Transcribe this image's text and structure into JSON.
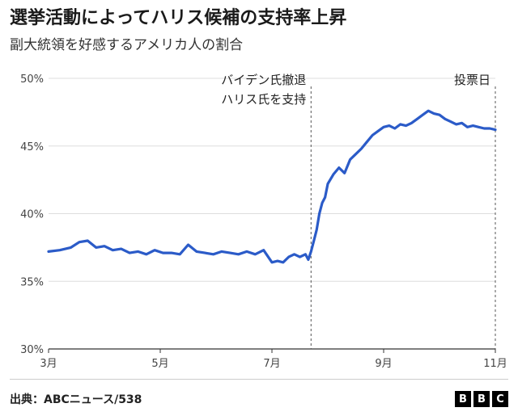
{
  "title": "選挙活動によってハリス候補の支持率上昇",
  "subtitle": "副大統領を好感するアメリカ人の割合",
  "source": "出典：ABCニュース/538",
  "logo": {
    "letters": [
      "B",
      "B",
      "C"
    ]
  },
  "chart_data": {
    "type": "line",
    "y_ticks": [
      "50%",
      "45%",
      "40%",
      "35%",
      "30%"
    ],
    "y_tick_values": [
      50,
      45,
      40,
      35,
      30
    ],
    "ylim": [
      30,
      50
    ],
    "x_ticks": [
      "3月",
      "5月",
      "7月",
      "9月",
      "11月"
    ],
    "x_tick_values": [
      0,
      2,
      4,
      6,
      8
    ],
    "xlim": [
      0,
      8
    ],
    "grid": "horizontal",
    "series_color": "#2b5bc8",
    "annotations": [
      {
        "lines": [
          "バイデン氏撤退",
          "ハリス氏を支持"
        ],
        "x": 4.7
      },
      {
        "lines": [
          "投票日"
        ],
        "x": 8.0
      }
    ],
    "series": [
      {
        "x": [
          0.0,
          0.2,
          0.4,
          0.55,
          0.7,
          0.85,
          1.0,
          1.15,
          1.3,
          1.45,
          1.6,
          1.75,
          1.9,
          2.05,
          2.2,
          2.35,
          2.5,
          2.65,
          2.8,
          2.95,
          3.1,
          3.25,
          3.4,
          3.55,
          3.7,
          3.85,
          4.0,
          4.1,
          4.2,
          4.3,
          4.4,
          4.5,
          4.6,
          4.65,
          4.7,
          4.75,
          4.8,
          4.85,
          4.9,
          4.95,
          5.0,
          5.1,
          5.2,
          5.3,
          5.4,
          5.5,
          5.6,
          5.7,
          5.8,
          5.9,
          6.0,
          6.1,
          6.2,
          6.3,
          6.4,
          6.5,
          6.6,
          6.7,
          6.8,
          6.9,
          7.0,
          7.1,
          7.2,
          7.3,
          7.4,
          7.5,
          7.6,
          7.7,
          7.8,
          7.9,
          8.0
        ],
        "values": [
          37.2,
          37.3,
          37.5,
          37.9,
          38.0,
          37.5,
          37.6,
          37.3,
          37.4,
          37.1,
          37.2,
          37.0,
          37.3,
          37.1,
          37.1,
          37.0,
          37.7,
          37.2,
          37.1,
          37.0,
          37.2,
          37.1,
          37.0,
          37.2,
          37.0,
          37.3,
          36.4,
          36.5,
          36.4,
          36.8,
          37.0,
          36.8,
          37.0,
          36.6,
          37.2,
          38.0,
          38.8,
          40.0,
          40.8,
          41.2,
          42.2,
          42.9,
          43.4,
          43.0,
          44.0,
          44.4,
          44.8,
          45.3,
          45.8,
          46.1,
          46.4,
          46.5,
          46.3,
          46.6,
          46.5,
          46.7,
          47.0,
          47.3,
          47.6,
          47.4,
          47.3,
          47.0,
          46.8,
          46.6,
          46.7,
          46.4,
          46.5,
          46.4,
          46.3,
          46.3,
          46.2
        ]
      }
    ]
  }
}
